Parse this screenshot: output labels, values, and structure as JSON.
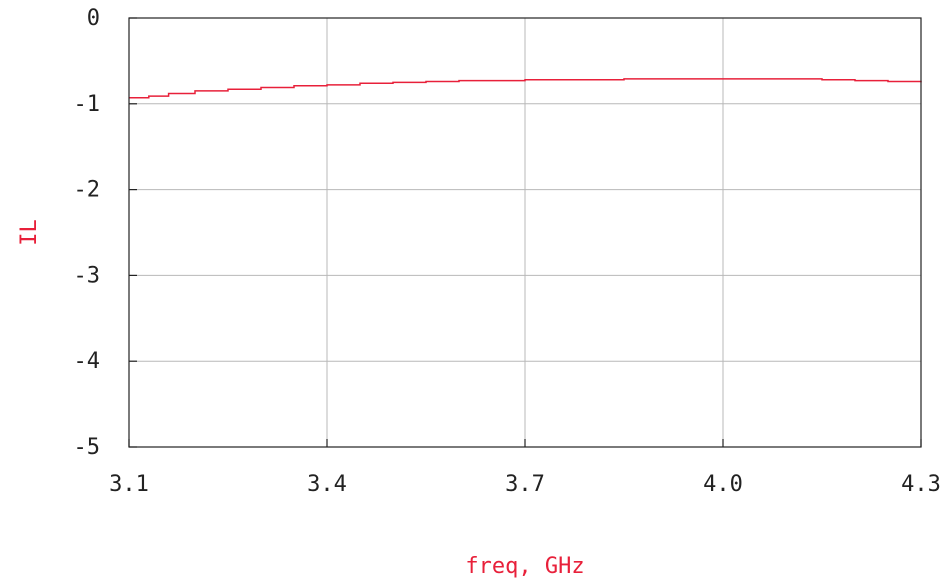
{
  "chart_data": {
    "type": "line",
    "xlabel": "freq, GHz",
    "ylabel": "IL",
    "xlim": [
      3.1,
      4.3
    ],
    "ylim": [
      -5,
      0
    ],
    "xticks": [
      "3.1",
      "3.4",
      "3.7",
      "4.0",
      "4.3"
    ],
    "xtick_values": [
      3.1,
      3.4,
      3.7,
      4.0,
      4.3
    ],
    "yticks": [
      "0",
      "-1",
      "-2",
      "-3",
      "-4",
      "-5"
    ],
    "ytick_values": [
      0,
      -1,
      -2,
      -3,
      -4,
      -5
    ],
    "grid": true,
    "series": [
      {
        "color": "#e8203a",
        "x": [
          3.1,
          3.13,
          3.16,
          3.2,
          3.25,
          3.3,
          3.35,
          3.4,
          3.45,
          3.5,
          3.55,
          3.6,
          3.65,
          3.7,
          3.75,
          3.8,
          3.85,
          3.9,
          3.95,
          4.0,
          4.05,
          4.1,
          4.15,
          4.2,
          4.25,
          4.3
        ],
        "y": [
          -0.93,
          -0.91,
          -0.88,
          -0.85,
          -0.83,
          -0.81,
          -0.79,
          -0.78,
          -0.76,
          -0.75,
          -0.74,
          -0.73,
          -0.73,
          -0.72,
          -0.72,
          -0.72,
          -0.71,
          -0.71,
          -0.71,
          -0.71,
          -0.71,
          -0.71,
          -0.72,
          -0.73,
          -0.74,
          -0.75
        ]
      }
    ]
  },
  "colors": {
    "series": "#e8203a",
    "grid": "#b8b8b8",
    "frame": "#222222"
  }
}
